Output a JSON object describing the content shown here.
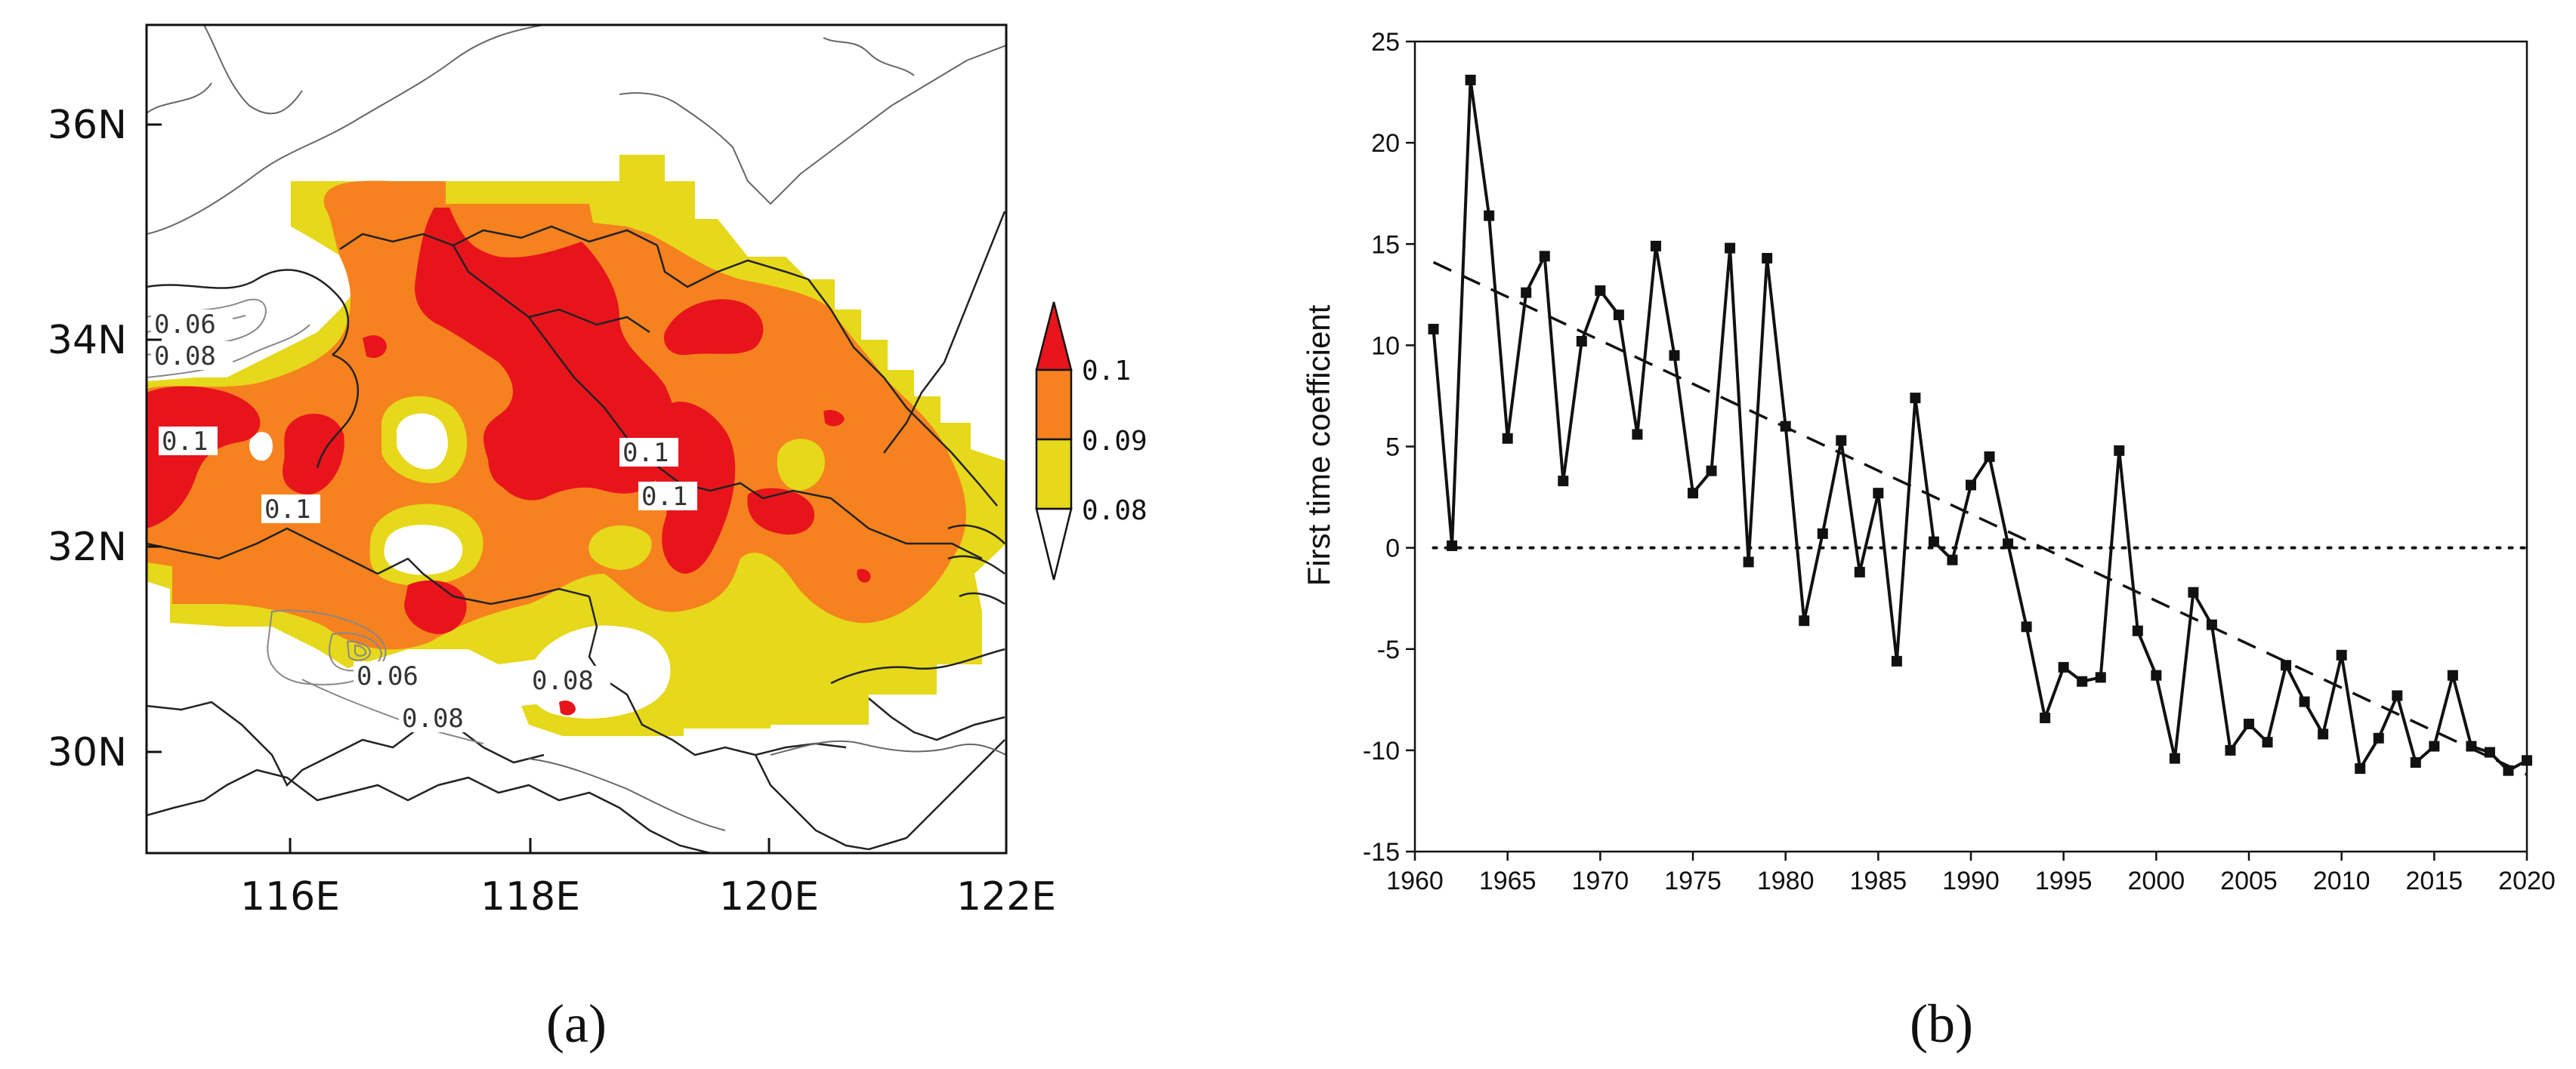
{
  "panel_a": {
    "caption": "(a)",
    "x_ticks": [
      "116E",
      "118E",
      "120E",
      "122E"
    ],
    "y_ticks": [
      "30N",
      "32N",
      "34N",
      "36N"
    ],
    "contour_labels": [
      "0.06",
      "0.08",
      "0.1",
      "0.1",
      "0.1",
      "0.1",
      "0.06",
      "0.08",
      "0.08"
    ],
    "legend": {
      "levels": [
        "0.1",
        "0.09",
        "0.08"
      ],
      "colors": [
        "#e8141c",
        "#f5821f",
        "#e6d81a",
        "#ffffff"
      ]
    }
  },
  "panel_b": {
    "caption": "(b)",
    "chart_data": {
      "type": "line",
      "title": "",
      "xlabel": "",
      "ylabel": "First time coefficient",
      "xlim": [
        1960,
        2020
      ],
      "ylim": [
        -15,
        25
      ],
      "x_ticks": [
        1960,
        1965,
        1970,
        1975,
        1980,
        1985,
        1990,
        1995,
        2000,
        2005,
        2010,
        2015,
        2020
      ],
      "y_ticks": [
        -15,
        -10,
        -5,
        0,
        5,
        10,
        15,
        20,
        25
      ],
      "series": [
        {
          "name": "First time coefficient",
          "style": "solid line with square markers",
          "x": [
            1961,
            1962,
            1963,
            1964,
            1965,
            1966,
            1967,
            1968,
            1969,
            1970,
            1971,
            1972,
            1973,
            1974,
            1975,
            1976,
            1977,
            1978,
            1979,
            1980,
            1981,
            1982,
            1983,
            1984,
            1985,
            1986,
            1987,
            1988,
            1989,
            1990,
            1991,
            1992,
            1993,
            1994,
            1995,
            1996,
            1997,
            1998,
            1999,
            2000,
            2001,
            2002,
            2003,
            2004,
            2005,
            2006,
            2007,
            2008,
            2009,
            2010,
            2011,
            2012,
            2013,
            2014,
            2015,
            2016,
            2017,
            2018,
            2019,
            2020
          ],
          "values": [
            10.8,
            0.1,
            23.1,
            16.4,
            5.4,
            12.6,
            14.4,
            3.3,
            10.2,
            12.7,
            11.5,
            5.6,
            14.9,
            9.5,
            2.7,
            3.8,
            14.8,
            -0.7,
            14.3,
            6.0,
            -3.6,
            0.7,
            5.3,
            -1.2,
            2.7,
            -5.6,
            7.4,
            0.3,
            -0.6,
            3.1,
            4.5,
            0.2,
            -3.9,
            -8.4,
            -5.9,
            -6.6,
            -6.4,
            4.8,
            -4.1,
            -6.3,
            -10.4,
            -2.2,
            -3.8,
            -10.0,
            -8.7,
            -9.6,
            -5.8,
            -7.6,
            -9.2,
            -5.3,
            -10.9,
            -9.4,
            -7.3,
            -10.6,
            -9.8,
            -6.3,
            -9.8,
            -10.1,
            -11.0,
            -10.5
          ]
        },
        {
          "name": "Linear trend",
          "style": "dashed",
          "x": [
            1961,
            2020
          ],
          "values": [
            14.1,
            -11.2
          ]
        },
        {
          "name": "Zero line",
          "style": "dotted",
          "x": [
            1961,
            2020
          ],
          "values": [
            0,
            0
          ]
        }
      ]
    }
  }
}
